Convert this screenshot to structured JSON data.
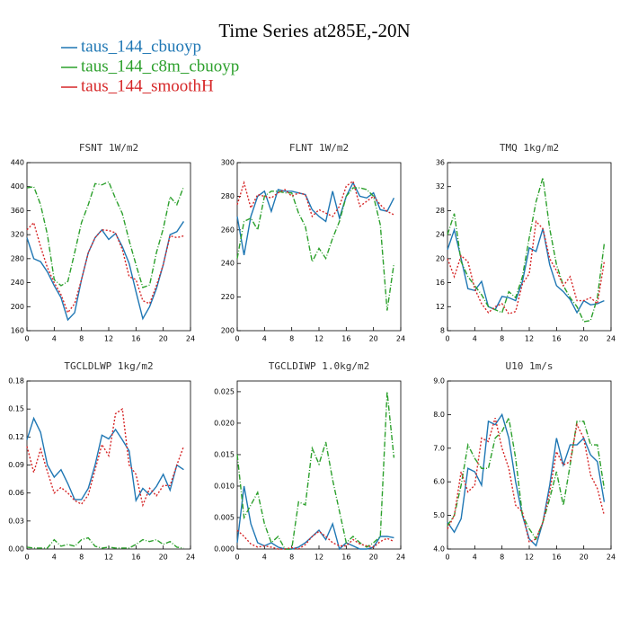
{
  "title": "Time Series at285E,-20N",
  "chart_data": [
    {
      "type": "line",
      "title": "FSNT   1W/m2",
      "x": [
        0,
        1,
        2,
        3,
        4,
        5,
        6,
        7,
        8,
        9,
        10,
        11,
        12,
        13,
        14,
        15,
        16,
        17,
        18,
        19,
        20,
        21,
        22,
        23
      ],
      "xlim": [
        0,
        24
      ],
      "xticks": [
        0,
        4,
        8,
        12,
        16,
        20,
        24
      ],
      "ylim": [
        160,
        440
      ],
      "yticks": [
        160,
        200,
        240,
        280,
        320,
        360,
        400,
        440
      ],
      "series": [
        {
          "name": "taus_144_cbuoyp",
          "color": "#1f77b4",
          "linestyle": "solid",
          "values": [
            315,
            280,
            275,
            258,
            235,
            215,
            178,
            190,
            245,
            290,
            315,
            328,
            312,
            322,
            300,
            272,
            225,
            180,
            200,
            230,
            270,
            320,
            325,
            342
          ]
        },
        {
          "name": "taus_144_c8m_cbuoyp",
          "color": "#2ca02c",
          "linestyle": "dashdot",
          "values": [
            398,
            400,
            370,
            320,
            245,
            235,
            242,
            290,
            340,
            370,
            405,
            403,
            408,
            380,
            355,
            310,
            270,
            232,
            236,
            290,
            330,
            383,
            370,
            400
          ]
        },
        {
          "name": "taus_144_smoothH",
          "color": "#d62728",
          "linestyle": "dotted",
          "values": [
            328,
            340,
            300,
            265,
            240,
            220,
            190,
            205,
            245,
            290,
            315,
            328,
            327,
            323,
            295,
            250,
            245,
            210,
            205,
            235,
            270,
            318,
            315,
            318
          ]
        }
      ]
    },
    {
      "type": "line",
      "title": "FLNT   1W/m2",
      "x": [
        0,
        1,
        2,
        3,
        4,
        5,
        6,
        7,
        8,
        9,
        10,
        11,
        12,
        13,
        14,
        15,
        16,
        17,
        18,
        19,
        20,
        21,
        22,
        23
      ],
      "xlim": [
        0,
        24
      ],
      "xticks": [
        0,
        4,
        8,
        12,
        16,
        20,
        24
      ],
      "ylim": [
        200,
        300
      ],
      "yticks": [
        200,
        220,
        240,
        260,
        280,
        300
      ],
      "series": [
        {
          "color": "#1f77b4",
          "linestyle": "solid",
          "values": [
            268,
            245,
            268,
            280,
            283,
            271,
            284,
            283,
            283,
            282,
            281,
            272,
            268,
            265,
            283,
            267,
            280,
            288,
            280,
            279,
            282,
            272,
            271,
            279
          ]
        },
        {
          "color": "#2ca02c",
          "linestyle": "dashdot",
          "values": [
            243,
            265,
            267,
            260,
            280,
            283,
            283,
            282,
            282,
            270,
            262,
            241,
            249,
            243,
            255,
            265,
            280,
            285,
            285,
            284,
            280,
            263,
            212,
            240
          ]
        },
        {
          "color": "#d62728",
          "linestyle": "dotted",
          "values": [
            275,
            288,
            273,
            281,
            280,
            279,
            282,
            284,
            280,
            282,
            281,
            268,
            272,
            270,
            268,
            274,
            286,
            289,
            274,
            277,
            280,
            275,
            271,
            269
          ]
        }
      ]
    },
    {
      "type": "line",
      "title": "TMQ   1kg/m2",
      "x": [
        0,
        1,
        2,
        3,
        4,
        5,
        6,
        7,
        8,
        9,
        10,
        11,
        12,
        13,
        14,
        15,
        16,
        17,
        18,
        19,
        20,
        21,
        22,
        23
      ],
      "xlim": [
        0,
        24
      ],
      "xticks": [
        0,
        4,
        8,
        12,
        16,
        20,
        24
      ],
      "ylim": [
        8,
        36
      ],
      "yticks": [
        8,
        12,
        16,
        20,
        24,
        28,
        32,
        36
      ],
      "series": [
        {
          "color": "#1f77b4",
          "linestyle": "solid",
          "values": [
            21.5,
            24.8,
            20,
            15,
            14.7,
            16.2,
            12,
            11.5,
            13.7,
            13.5,
            13,
            16.2,
            21.8,
            21.2,
            25,
            19,
            15.5,
            14.5,
            13.2,
            11,
            13,
            12.3,
            12.5,
            13
          ]
        },
        {
          "color": "#2ca02c",
          "linestyle": "dashdot",
          "values": [
            24,
            27.5,
            19.5,
            17,
            15.5,
            14,
            12,
            11.5,
            11,
            14.5,
            13.5,
            17,
            23.5,
            29.5,
            33.5,
            25,
            19,
            15.5,
            13.5,
            12,
            9.5,
            9.7,
            13.5,
            22.5
          ]
        },
        {
          "color": "#d62728",
          "linestyle": "dotted",
          "values": [
            20,
            17,
            20.5,
            19.5,
            15,
            12.5,
            11,
            12,
            12.5,
            10.8,
            11.2,
            15.8,
            17.5,
            26.2,
            25,
            20,
            18,
            15.5,
            17,
            13,
            13,
            13.5,
            12.5,
            19.5
          ]
        }
      ]
    },
    {
      "type": "line",
      "title": "TGCLDLWP   1kg/m2",
      "x": [
        0,
        1,
        2,
        3,
        4,
        5,
        6,
        7,
        8,
        9,
        10,
        11,
        12,
        13,
        14,
        15,
        16,
        17,
        18,
        19,
        20,
        21,
        22,
        23
      ],
      "xlim": [
        0,
        24
      ],
      "xticks": [
        0,
        4,
        8,
        12,
        16,
        20,
        24
      ],
      "ylim": [
        0,
        0.18
      ],
      "yticks": [
        {
          "value": 0,
          "label": "0.00"
        },
        {
          "value": 0.03,
          "label": "0.03"
        },
        {
          "value": 0.06,
          "label": "0.06"
        },
        {
          "value": 0.09,
          "label": "0.09"
        },
        {
          "value": 0.12,
          "label": "0.12"
        },
        {
          "value": 0.15,
          "label": "0.15"
        },
        {
          "value": 0.18,
          "label": "0.18"
        }
      ],
      "series": [
        {
          "color": "#1f77b4",
          "linestyle": "solid",
          "values": [
            0.117,
            0.14,
            0.125,
            0.09,
            0.077,
            0.085,
            0.07,
            0.053,
            0.053,
            0.065,
            0.09,
            0.122,
            0.118,
            0.128,
            0.117,
            0.105,
            0.052,
            0.065,
            0.058,
            0.067,
            0.08,
            0.063,
            0.09,
            0.085
          ]
        },
        {
          "color": "#2ca02c",
          "linestyle": "dashdot",
          "values": [
            0.002,
            0.001,
            0.001,
            0.001,
            0.01,
            0.003,
            0.005,
            0.003,
            0.01,
            0.012,
            0.003,
            0.001,
            0.002,
            0.001,
            0.001,
            0.001,
            0.005,
            0.01,
            0.008,
            0.01,
            0.005,
            0.008,
            0.002,
            0.001
          ]
        },
        {
          "color": "#d62728",
          "linestyle": "dotted",
          "values": [
            0.11,
            0.082,
            0.107,
            0.083,
            0.06,
            0.066,
            0.06,
            0.052,
            0.048,
            0.058,
            0.085,
            0.112,
            0.1,
            0.145,
            0.15,
            0.09,
            0.08,
            0.047,
            0.065,
            0.057,
            0.068,
            0.068,
            0.09,
            0.11
          ]
        }
      ]
    },
    {
      "type": "line",
      "title": "TGCLDIWP   1.0kg/m2",
      "x": [
        0,
        1,
        2,
        3,
        4,
        5,
        6,
        7,
        8,
        9,
        10,
        11,
        12,
        13,
        14,
        15,
        16,
        17,
        18,
        19,
        20,
        21,
        22,
        23
      ],
      "xlim": [
        0,
        24
      ],
      "xticks": [
        0,
        4,
        8,
        12,
        16,
        20,
        24
      ],
      "ylim": [
        0,
        0.0267
      ],
      "yticks": [
        {
          "value": 0,
          "label": "0.000"
        },
        {
          "value": 0.005,
          "label": "0.005"
        },
        {
          "value": 0.01,
          "label": "0.010"
        },
        {
          "value": 0.015,
          "label": "0.015"
        },
        {
          "value": 0.02,
          "label": "0.020"
        },
        {
          "value": 0.025,
          "label": "0.025"
        }
      ],
      "series": [
        {
          "color": "#1f77b4",
          "linestyle": "solid",
          "values": [
            0.001,
            0.01,
            0.004,
            0.001,
            0.0005,
            0.001,
            0.0003,
            0,
            0,
            0.0003,
            0.001,
            0.002,
            0.003,
            0.0015,
            0.004,
            0,
            0.001,
            0.0005,
            0,
            0,
            0.0003,
            0.002,
            0.002,
            0.0018
          ]
        },
        {
          "color": "#2ca02c",
          "linestyle": "dashdot",
          "values": [
            0.015,
            0.005,
            0.007,
            0.009,
            0.004,
            0.001,
            0.002,
            0,
            0,
            0.0075,
            0.007,
            0.016,
            0.0135,
            0.017,
            0.011,
            0.006,
            0.001,
            0.002,
            0.001,
            0.0003,
            0.001,
            0.002,
            0.025,
            0.0145
          ]
        },
        {
          "color": "#d62728",
          "linestyle": "dotted",
          "values": [
            0.003,
            0.002,
            0.0008,
            0.0003,
            0.0005,
            0.0003,
            0,
            0,
            0.0002,
            0,
            0.0007,
            0.002,
            0.0028,
            0.002,
            0.001,
            0.0005,
            0.0005,
            0.0015,
            0.0008,
            0.0005,
            0.0003,
            0.0012,
            0.0017,
            0.0012
          ]
        }
      ]
    },
    {
      "type": "line",
      "title": "U10   1m/s",
      "x": [
        0,
        1,
        2,
        3,
        4,
        5,
        6,
        7,
        8,
        9,
        10,
        11,
        12,
        13,
        14,
        15,
        16,
        17,
        18,
        19,
        20,
        21,
        22,
        23
      ],
      "xlim": [
        0,
        24
      ],
      "xticks": [
        0,
        4,
        8,
        12,
        16,
        20,
        24
      ],
      "ylim": [
        4,
        9
      ],
      "yticks": [
        {
          "value": 4,
          "label": "4.0"
        },
        {
          "value": 5,
          "label": "5.0"
        },
        {
          "value": 6,
          "label": "6.0"
        },
        {
          "value": 7,
          "label": "7.0"
        },
        {
          "value": 8,
          "label": "8.0"
        },
        {
          "value": 9,
          "label": "9.0"
        }
      ],
      "series": [
        {
          "color": "#1f77b4",
          "linestyle": "solid",
          "values": [
            4.8,
            4.5,
            4.9,
            6.4,
            6.3,
            5.9,
            7.8,
            7.7,
            8.0,
            7.3,
            6.0,
            5.0,
            4.3,
            4.1,
            4.8,
            5.9,
            7.3,
            6.5,
            7.1,
            7.1,
            7.3,
            6.8,
            6.6,
            5.4
          ]
        },
        {
          "color": "#2ca02c",
          "linestyle": "dashdot",
          "values": [
            4.7,
            5.0,
            5.9,
            7.1,
            6.7,
            6.4,
            6.4,
            7.3,
            7.5,
            7.9,
            6.7,
            5.0,
            4.6,
            4.3,
            4.8,
            5.5,
            6.3,
            5.3,
            6.5,
            7.8,
            7.8,
            7.1,
            7.1,
            5.8
          ]
        },
        {
          "color": "#d62728",
          "linestyle": "dotted",
          "values": [
            4.6,
            5.0,
            6.3,
            5.7,
            5.9,
            7.3,
            7.2,
            7.9,
            7.0,
            6.4,
            5.3,
            5.1,
            4.2,
            4.3,
            4.8,
            5.7,
            6.9,
            6.5,
            6.6,
            7.7,
            7.3,
            6.2,
            5.8,
            5.0
          ]
        }
      ]
    }
  ]
}
